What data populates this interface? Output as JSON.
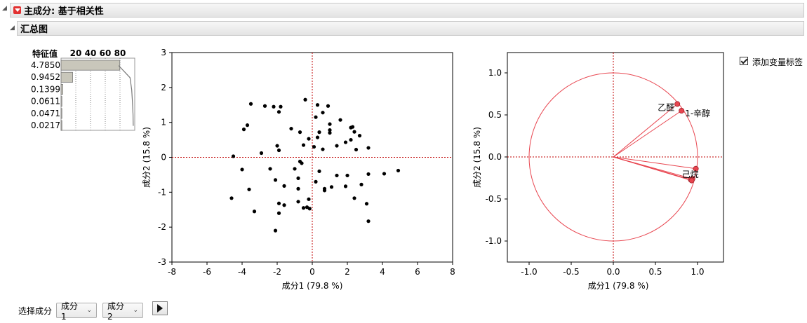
{
  "section": {
    "title": "主成分: 基于相关性"
  },
  "subsection": {
    "title": "汇总图"
  },
  "eigen": {
    "header": "特征值",
    "scale_labels": [
      "20",
      "40",
      "60",
      "80"
    ],
    "values": [
      "4.7850",
      "0.9452",
      "0.1399",
      "0.0611",
      "0.0471",
      "0.0217"
    ],
    "percents": [
      79.75,
      15.75,
      2.33,
      1.02,
      0.79,
      0.36
    ]
  },
  "score_plot": {
    "xlabel": "成分1 (79.8 %)",
    "ylabel": "成分2 (15.8 %)",
    "xlim": [
      -8,
      8
    ],
    "ylim": [
      -3,
      3
    ],
    "xticks": [
      "-8",
      "-6",
      "-4",
      "-2",
      "0",
      "2",
      "4",
      "6",
      "8"
    ],
    "yticks": [
      "3",
      "2",
      "1",
      "0",
      "-1",
      "-2",
      "-3"
    ]
  },
  "chart_data": [
    {
      "type": "scatter",
      "title": "",
      "xlabel": "成分1 (79.8 %)",
      "ylabel": "成分2 (15.8 %)",
      "xlim": [
        -8,
        8
      ],
      "ylim": [
        -3,
        3
      ],
      "points": [
        [
          -3.5,
          1.53
        ],
        [
          -2.2,
          1.45
        ],
        [
          -1.8,
          1.45
        ],
        [
          -2.7,
          1.47
        ],
        [
          -1.9,
          1.3
        ],
        [
          -3.7,
          0.92
        ],
        [
          -3.9,
          0.8
        ],
        [
          -1.2,
          0.82
        ],
        [
          -0.7,
          0.72
        ],
        [
          -0.4,
          1.65
        ],
        [
          0.3,
          1.5
        ],
        [
          0.9,
          1.47
        ],
        [
          0.6,
          1.28
        ],
        [
          1.6,
          1.07
        ],
        [
          0.2,
          1.15
        ],
        [
          1.0,
          0.95
        ],
        [
          0.4,
          0.72
        ],
        [
          1.0,
          0.7
        ],
        [
          1.0,
          0.78
        ],
        [
          0.3,
          0.57
        ],
        [
          -0.2,
          0.53
        ],
        [
          2.2,
          0.85
        ],
        [
          2.3,
          0.87
        ],
        [
          2.4,
          0.73
        ],
        [
          2.7,
          0.62
        ],
        [
          1.9,
          0.43
        ],
        [
          2.2,
          0.5
        ],
        [
          3.2,
          0.27
        ],
        [
          2.5,
          0.22
        ],
        [
          1.4,
          0.33
        ],
        [
          0.6,
          0.23
        ],
        [
          0.1,
          0.3
        ],
        [
          -0.5,
          0.35
        ],
        [
          -2.0,
          0.33
        ],
        [
          -1.9,
          0.2
        ],
        [
          -2.9,
          0.12
        ],
        [
          -4.5,
          0.03
        ],
        [
          -0.6,
          -0.17
        ],
        [
          -0.7,
          -0.12
        ],
        [
          0.4,
          -0.4
        ],
        [
          1.4,
          -0.52
        ],
        [
          2.0,
          -0.52
        ],
        [
          3.2,
          -0.48
        ],
        [
          4.1,
          -0.47
        ],
        [
          4.9,
          -0.38
        ],
        [
          -1.0,
          -0.33
        ],
        [
          -2.4,
          -0.33
        ],
        [
          -4.0,
          -0.35
        ],
        [
          -2.1,
          -0.65
        ],
        [
          -0.8,
          -0.6
        ],
        [
          -1.6,
          -0.82
        ],
        [
          -0.8,
          -0.9
        ],
        [
          0.2,
          -0.7
        ],
        [
          0.7,
          -0.9
        ],
        [
          0.7,
          -0.95
        ],
        [
          1.1,
          -0.85
        ],
        [
          1.9,
          -0.83
        ],
        [
          2.8,
          -0.78
        ],
        [
          -3.6,
          -0.92
        ],
        [
          -4.6,
          -1.17
        ],
        [
          -1.9,
          -1.32
        ],
        [
          -0.2,
          -1.2
        ],
        [
          -0.8,
          -1.27
        ],
        [
          -1.6,
          -1.37
        ],
        [
          -0.3,
          -1.43
        ],
        [
          -0.15,
          -1.47
        ],
        [
          -0.5,
          -1.45
        ],
        [
          -3.3,
          -1.55
        ],
        [
          -1.9,
          -1.6
        ],
        [
          3.1,
          -1.33
        ],
        [
          3.2,
          -1.83
        ],
        [
          -2.1,
          -2.1
        ],
        [
          2.4,
          -1.17
        ]
      ]
    },
    {
      "type": "scatter",
      "title": "",
      "xlabel": "成分1 (79.8 %)",
      "ylabel": "成分2 (15.8 %)",
      "xlim": [
        -1.0,
        1.0
      ],
      "ylim": [
        -1.0,
        1.0
      ],
      "xticks": [
        "-1.0",
        "-0.5",
        "0.0",
        "0.5",
        "1.0"
      ],
      "yticks": [
        "1.0",
        "0.5",
        "0.0",
        "-0.5",
        "-1.0"
      ],
      "circle_radius": 1.0,
      "loadings": [
        {
          "label": "乙醛",
          "x": 0.76,
          "y": 0.63
        },
        {
          "label": "1-辛醇",
          "x": 0.81,
          "y": 0.55
        },
        {
          "label": "己烷",
          "x": 0.98,
          "y": -0.14
        },
        {
          "label": "",
          "x": 0.94,
          "y": -0.26
        },
        {
          "label": "",
          "x": 0.92,
          "y": -0.27
        },
        {
          "label": "",
          "x": 0.93,
          "y": -0.28
        }
      ]
    }
  ],
  "controls": {
    "select_label": "选择成分",
    "comp_x": "成分1",
    "comp_y": "成分2",
    "add_var_label": "添加变量标签"
  },
  "colors": {
    "loading": "#e8454f",
    "ref": "#c00000"
  }
}
